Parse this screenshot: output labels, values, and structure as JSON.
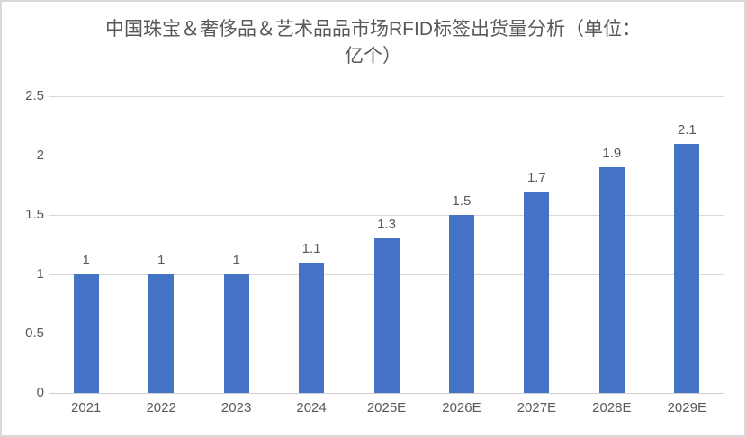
{
  "chart_data": {
    "type": "bar",
    "title": "中国珠宝＆奢侈品＆艺术品市场RFID标签出货量分析（单位：亿个）",
    "title_line1": "中国珠宝＆奢侈品＆艺术品品市场RFID标签出货量分析（单位：",
    "title_line2": "亿个）",
    "categories": [
      "2021",
      "2022",
      "2023",
      "2024",
      "2025E",
      "2026E",
      "2027E",
      "2028E",
      "2029E"
    ],
    "values": [
      1,
      1,
      1,
      1.1,
      1.3,
      1.5,
      1.7,
      1.9,
      2.1
    ],
    "data_labels": [
      "1",
      "1",
      "1",
      "1.1",
      "1.3",
      "1.5",
      "1.7",
      "1.9",
      "2.1"
    ],
    "yticks": [
      "0",
      "0.5",
      "1",
      "1.5",
      "2",
      "2.5"
    ],
    "ytick_values": [
      0,
      0.5,
      1,
      1.5,
      2,
      2.5
    ],
    "ylim": [
      0,
      2.5
    ],
    "xlabel": "",
    "ylabel": "",
    "legend": "none",
    "grid": true,
    "colors": {
      "bar": "#4472C4",
      "title": "#595959",
      "axis_label": "#595959",
      "gridline": "#D9D9D9",
      "frame_border": "#D9D9D9"
    }
  }
}
